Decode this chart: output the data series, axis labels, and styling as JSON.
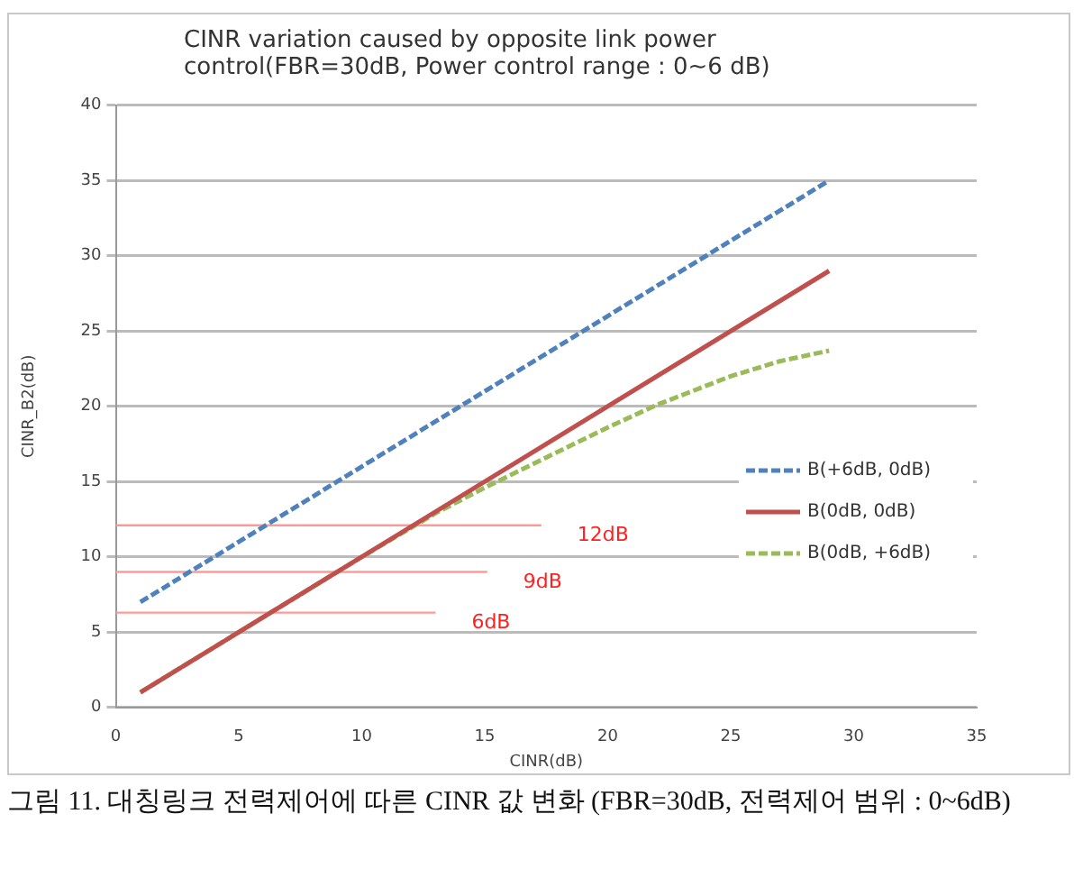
{
  "chart_data": {
    "type": "line",
    "title": "CINR variation caused by opposite link power control(FBR=30dB, Power control range : 0~6 dB)",
    "xlabel": "CINR(dB)",
    "ylabel": "CINR_B2(dB)",
    "xlim": [
      0,
      35
    ],
    "xticks": [
      0,
      5,
      10,
      15,
      20,
      25,
      30,
      35
    ],
    "ylim": [
      0,
      40
    ],
    "yticks": [
      0,
      5,
      10,
      15,
      20,
      25,
      30,
      35,
      40
    ],
    "grid": "y",
    "legend": "right",
    "marker": "none",
    "series": [
      {
        "name": "B(+6dB, 0dB)",
        "color": "#4f81bd",
        "line_style": "dashed",
        "x": [
          1,
          29
        ],
        "values": [
          7,
          35
        ]
      },
      {
        "name": "B(0dB, 0dB)",
        "color": "#c0504d",
        "line_style": "solid",
        "x": [
          1,
          29
        ],
        "values": [
          1,
          29
        ]
      },
      {
        "name": "B(0dB, +6dB)",
        "color": "#9bbb59",
        "line_style": "dashed",
        "x": [
          1,
          5,
          10,
          13,
          15,
          17,
          20,
          22,
          25,
          27,
          29
        ],
        "values": [
          1,
          5,
          10,
          12.9,
          14.6,
          16.2,
          18.6,
          20.1,
          22,
          23,
          23.7
        ]
      },
      {
        "color": "#ff9999",
        "line_style": "solid",
        "x": [
          0,
          17.3
        ],
        "values": [
          12.1,
          12.1
        ]
      },
      {
        "color": "#ff9999",
        "line_style": "solid",
        "x": [
          0,
          15.1
        ],
        "values": [
          9,
          9
        ]
      },
      {
        "color": "#ff9999",
        "line_style": "solid",
        "x": [
          0,
          13
        ],
        "values": [
          6.3,
          6.3
        ]
      }
    ],
    "annotations": [
      {
        "text": "12dB",
        "x": 17.3,
        "y": 12.1
      },
      {
        "text": "9dB",
        "x": 15.1,
        "y": 9
      },
      {
        "text": "6dB",
        "x": 13,
        "y": 6.3
      },
      "그림 11. 대칭링크 전력제어에 따른 CINR 값 변화 (FBR=30dB, 전력제어 범위 : 0~6dB)"
    ]
  }
}
